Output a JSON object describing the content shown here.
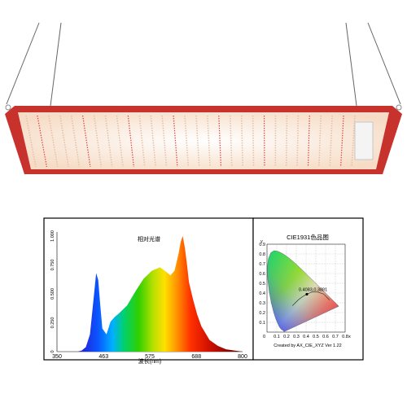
{
  "colors": {
    "frame_red": "#c8322d",
    "led_glow": "#fde9d6",
    "led_red": "#e03a36",
    "panel_border": "#000000"
  },
  "spectrum_chart": {
    "chart_data": {
      "type": "area",
      "title": "相对光谱",
      "xlabel": "波长(nm)",
      "ylabel": "",
      "xlim": [
        350,
        800
      ],
      "ylim": [
        0,
        1.0
      ],
      "x_ticks": [
        "350",
        "463",
        "575",
        "688",
        "800"
      ],
      "y_ticks": [
        "0",
        "0.250",
        "0.500",
        "0.750",
        "1.000"
      ],
      "x": [
        350,
        400,
        410,
        420,
        430,
        440,
        445,
        450,
        455,
        460,
        470,
        480,
        490,
        500,
        520,
        540,
        560,
        580,
        600,
        615,
        625,
        635,
        645,
        650,
        655,
        660,
        665,
        670,
        680,
        690,
        700,
        720,
        740,
        760,
        780,
        800
      ],
      "y": [
        0,
        0,
        0.01,
        0.04,
        0.15,
        0.5,
        0.68,
        0.62,
        0.4,
        0.2,
        0.15,
        0.26,
        0.3,
        0.33,
        0.4,
        0.52,
        0.63,
        0.7,
        0.73,
        0.69,
        0.66,
        0.7,
        0.85,
        0.95,
        1.0,
        0.9,
        0.76,
        0.6,
        0.45,
        0.32,
        0.22,
        0.1,
        0.05,
        0.02,
        0.01,
        0
      ]
    }
  },
  "cie_chart": {
    "chart_data": {
      "type": "scatter",
      "title": "CIE1931色品图",
      "footer": "Created by AX_CIE_XYZ Ver 1.22",
      "x_axis_label": "x",
      "y_axis_label": "y",
      "xlim": [
        0,
        0.8
      ],
      "ylim": [
        0,
        0.9
      ],
      "x_ticks": [
        "0.1",
        "0.2",
        "0.3",
        "0.4",
        "0.5",
        "0.6",
        "0.7",
        "0.8"
      ],
      "y_ticks": [
        "0.1",
        "0.2",
        "0.3",
        "0.4",
        "0.5",
        "0.6",
        "0.7",
        "0.8",
        "0.9"
      ],
      "origin_label": "0",
      "point": {
        "x": 0.4083,
        "y": 0.3881
      },
      "point_label": "0.4083,0.3881"
    }
  }
}
